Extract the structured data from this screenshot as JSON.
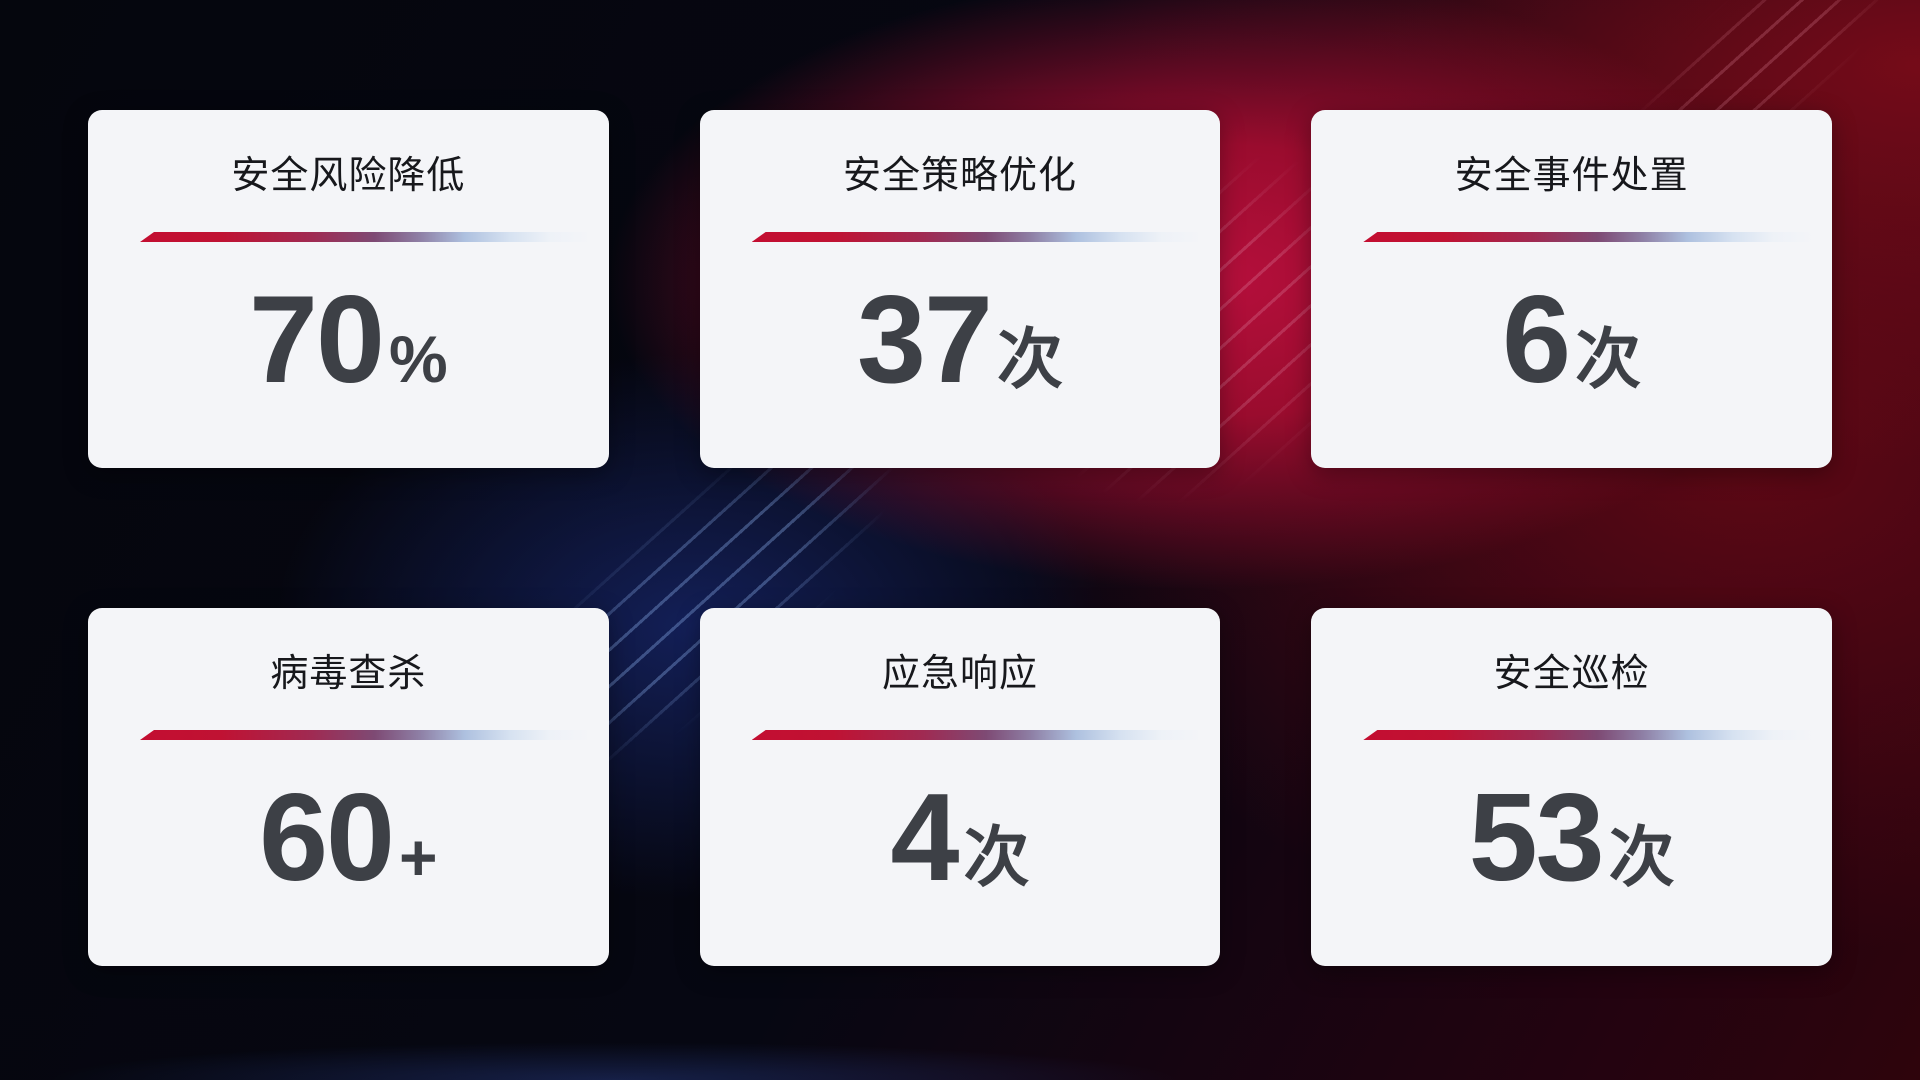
{
  "theme": {
    "accent_red": "#c30e31",
    "divider_blue_fade": "#a9bddb",
    "card_background": "#f4f5f8",
    "title_color": "#17181c",
    "value_color": "#3d4046",
    "background_navy": "#131f57",
    "background_crimson": "#b60f3c",
    "background_base": "#04050c"
  },
  "cards": [
    {
      "id": "security-risk-reduction",
      "title": "安全风险降低",
      "value": "70",
      "unit": "%"
    },
    {
      "id": "security-policy-optimization",
      "title": "安全策略优化",
      "value": "37",
      "unit": "次"
    },
    {
      "id": "security-incident-handling",
      "title": "安全事件处置",
      "value": "6",
      "unit": "次"
    },
    {
      "id": "virus-scan",
      "title": "病毒查杀",
      "value": "60",
      "unit": "+"
    },
    {
      "id": "emergency-response",
      "title": "应急响应",
      "value": "4",
      "unit": "次"
    },
    {
      "id": "security-inspection",
      "title": "安全巡检",
      "value": "53",
      "unit": "次"
    }
  ]
}
